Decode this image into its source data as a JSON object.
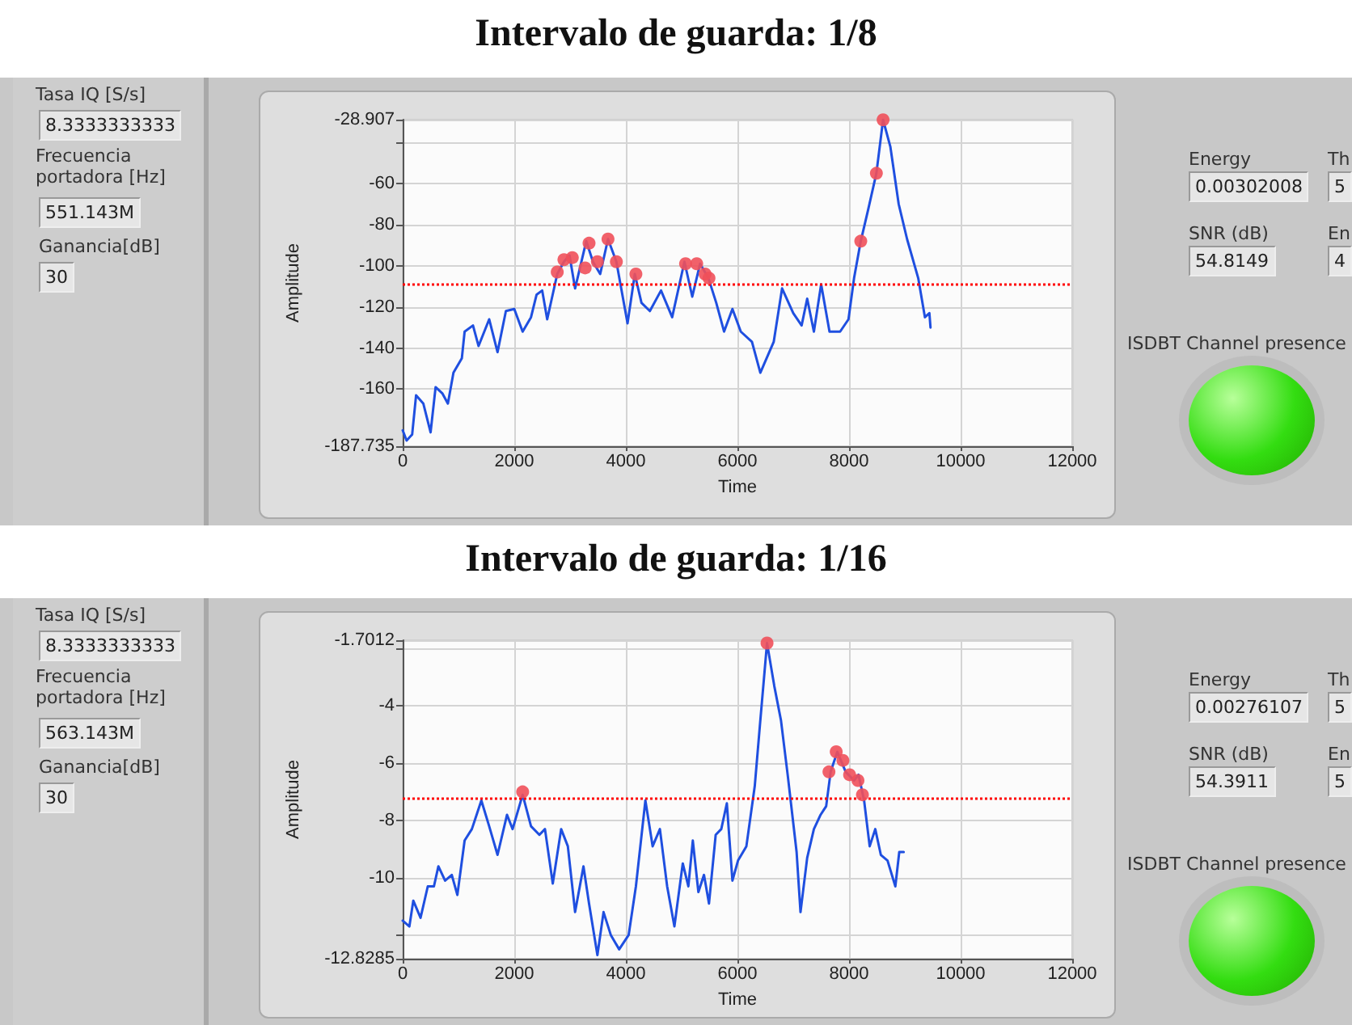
{
  "chart_data": [
    {
      "type": "line",
      "title": "Intervalo de guarda: 1/8",
      "xlabel": "Time",
      "ylabel": "Amplitude",
      "xlim": [
        0,
        12000
      ],
      "xticks": [
        0,
        2000,
        4000,
        6000,
        8000,
        10000,
        12000
      ],
      "ylim": [
        -187.735,
        -28.907
      ],
      "yticks": [
        -187.735,
        -160,
        -140,
        -120,
        -100,
        -80,
        -60,
        {
          "value": -40,
          "label": null
        },
        -28.907
      ],
      "grid": true,
      "series": [
        {
          "color": "#1f4fe0",
          "marker": "none",
          "line_style": "solid",
          "x": [
            0,
            70,
            170,
            240,
            370,
            500,
            590,
            710,
            810,
            910,
            1060,
            1110,
            1260,
            1360,
            1550,
            1700,
            1850,
            2000,
            2150,
            2300,
            2400,
            2500,
            2590,
            2770,
            2890,
            2990,
            3090,
            3290,
            3410,
            3540,
            3680,
            3830,
            4030,
            4160,
            4280,
            4430,
            4630,
            4830,
            5050,
            5190,
            5330,
            5480,
            5620,
            5760,
            5910,
            6060,
            6260,
            6410,
            6650,
            6800,
            7000,
            7150,
            7250,
            7370,
            7500,
            7650,
            7840,
            7990,
            8090,
            8210,
            8340,
            8490,
            8610,
            8740,
            8890,
            9040,
            9240,
            9360,
            9440,
            9460
          ],
          "values": [
            -180,
            -185,
            -182,
            -163,
            -167,
            -181,
            -159,
            -162,
            -167,
            -152,
            -145,
            -132,
            -129,
            -139,
            -126,
            -142,
            -122,
            -121,
            -132,
            -125,
            -114,
            -112,
            -126,
            -104,
            -98,
            -95,
            -111,
            -88,
            -98,
            -104,
            -87,
            -98,
            -128,
            -104,
            -118,
            -122,
            -112,
            -125,
            -98,
            -115,
            -99,
            -106,
            -118,
            -132,
            -121,
            -132,
            -137,
            -152,
            -137,
            -111,
            -123,
            -129,
            -116,
            -132,
            -109,
            -132,
            -132,
            -126,
            -106,
            -88,
            -73,
            -55,
            -29,
            -42,
            -70,
            -87,
            -106,
            -125,
            -123,
            -130
          ]
        },
        {
          "type": "scatter",
          "color": "#f0505a",
          "marker": "circle",
          "x": [
            2770,
            2890,
            3040,
            3270,
            3340,
            3490,
            3680,
            3830,
            4180,
            5070,
            5270,
            5420,
            5490,
            8210,
            8490,
            8610
          ],
          "values": [
            -103,
            -97,
            -96,
            -101,
            -89,
            -98,
            -87,
            -98,
            -104,
            -99,
            -99,
            -104,
            -106,
            -88,
            -55,
            -29
          ]
        }
      ],
      "ref_lines": [
        {
          "axis": "y",
          "value": -109,
          "color": "#ff0000",
          "line_style": "dotted"
        }
      ],
      "annotations": [
        "Tasa IQ [S/s]",
        "8.3333333333",
        "Frecuencia portadora [Hz]",
        "551.143M",
        "Ganancia[dB]",
        "30",
        "Energy",
        "0.00302008",
        "Th",
        "5",
        "SNR (dB)",
        "54.8149",
        "En",
        "4",
        "ISDBT Channel presence"
      ]
    },
    {
      "type": "line",
      "title": "Intervalo de guarda: 1/16",
      "xlabel": "Time",
      "ylabel": "Amplitude",
      "xlim": [
        0,
        12000
      ],
      "xticks": [
        0,
        2000,
        4000,
        6000,
        8000,
        10000,
        12000
      ],
      "ylim": [
        -12.8285,
        -1.7012
      ],
      "yticks": [
        -12.8285,
        {
          "value": -12,
          "label": null
        },
        -10,
        -8,
        -6,
        -4,
        {
          "value": -2,
          "label": null
        },
        -1.7012
      ],
      "grid": true,
      "series": [
        {
          "color": "#1f4fe0",
          "marker": "none",
          "line_style": "solid",
          "x": [
            0,
            120,
            190,
            320,
            450,
            560,
            640,
            760,
            880,
            980,
            1110,
            1240,
            1410,
            1550,
            1700,
            1870,
            1970,
            2150,
            2300,
            2450,
            2550,
            2690,
            2840,
            2960,
            3090,
            3240,
            3340,
            3490,
            3600,
            3730,
            3880,
            4050,
            4180,
            4350,
            4480,
            4610,
            4740,
            4870,
            5020,
            5120,
            5200,
            5300,
            5400,
            5490,
            5610,
            5710,
            5810,
            5910,
            6010,
            6160,
            6310,
            6410,
            6530,
            6660,
            6780,
            6900,
            7060,
            7130,
            7250,
            7370,
            7490,
            7590,
            7670,
            7790,
            7940,
            8090,
            8170,
            8270,
            8370,
            8470,
            8570,
            8690,
            8830,
            8900,
            8980
          ],
          "values": [
            -11.5,
            -11.7,
            -10.8,
            -11.4,
            -10.3,
            -10.3,
            -9.6,
            -10.1,
            -9.9,
            -10.6,
            -8.7,
            -8.3,
            -7.3,
            -8.2,
            -9.2,
            -7.8,
            -8.3,
            -7.1,
            -8.2,
            -8.5,
            -8.3,
            -10.2,
            -8.3,
            -8.9,
            -11.2,
            -9.6,
            -10.9,
            -12.7,
            -11.2,
            -12.0,
            -12.5,
            -12.0,
            -10.3,
            -7.3,
            -8.9,
            -8.3,
            -10.3,
            -11.7,
            -9.5,
            -10.3,
            -8.7,
            -10.5,
            -9.9,
            -10.9,
            -8.5,
            -8.3,
            -7.4,
            -10.1,
            -9.4,
            -8.9,
            -6.8,
            -4.5,
            -1.8,
            -3.3,
            -4.5,
            -6.4,
            -9.1,
            -11.2,
            -9.3,
            -8.3,
            -7.8,
            -7.5,
            -6.3,
            -5.6,
            -6.3,
            -6.6,
            -6.4,
            -7.3,
            -8.9,
            -8.3,
            -9.2,
            -9.4,
            -10.3,
            -9.1,
            -9.1
          ]
        },
        {
          "type": "scatter",
          "color": "#f0505a",
          "marker": "circle",
          "x": [
            2150,
            6530,
            7640,
            7770,
            7890,
            8010,
            8160,
            8240
          ],
          "values": [
            -7.0,
            -1.8,
            -6.3,
            -5.6,
            -5.9,
            -6.4,
            -6.6,
            -7.1
          ]
        }
      ],
      "ref_lines": [
        {
          "axis": "y",
          "value": -7.2,
          "color": "#ff0000",
          "line_style": "dotted"
        }
      ],
      "annotations": [
        "Tasa IQ [S/s]",
        "8.3333333333",
        "Frecuencia portadora [Hz]",
        "563.143M",
        "Ganancia[dB]",
        "30",
        "Energy",
        "0.00276107",
        "Th",
        "5",
        "SNR (dB)",
        "54.3911",
        "En",
        "5",
        "ISDBT Channel presence"
      ]
    }
  ]
}
